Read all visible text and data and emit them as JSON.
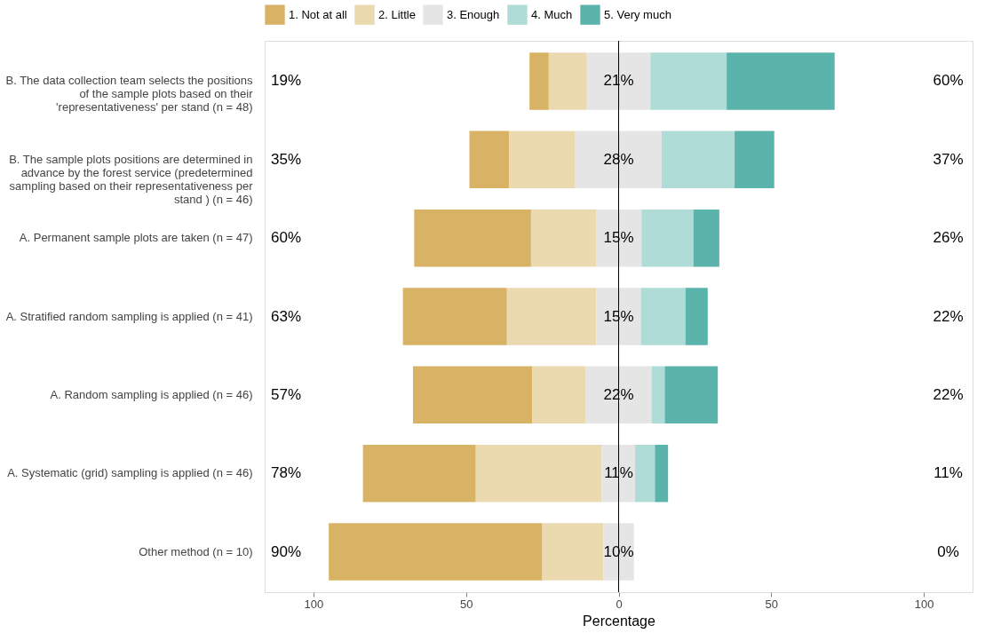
{
  "chart_data": {
    "type": "bar",
    "orientation": "horizontal",
    "xlabel": "Percentage",
    "categories": [
      "B. The data collection team selects the positions of the sample plots based on their 'representativeness' per stand (n = 48)",
      "B. The sample plots positions are determined in advance by the forest service (predetermined sampling based on their representativeness per stand ) (n = 46)",
      "A. Permanent sample plots are taken (n = 47)",
      "A. Stratified random sampling is applied (n = 41)",
      "A. Random sampling is applied (n = 46)",
      "A. Systematic (grid) sampling is applied (n = 46)",
      "Other method (n = 10)"
    ],
    "series": [
      {
        "name": "1. Not at all",
        "color": "#d8b365",
        "values": [
          6.3,
          13,
          38.3,
          34.1,
          39.1,
          37,
          70
        ],
        "base": [
          -29.2,
          -48.9,
          -67.0,
          -70.7,
          -67.4,
          -83.8,
          -95
        ]
      },
      {
        "name": "2. Little",
        "color": "#ebd9b0",
        "values": [
          12.5,
          21.7,
          21.3,
          29.3,
          17.4,
          41.3,
          20
        ],
        "base": [
          -22.9,
          -35.9,
          -28.7,
          -36.6,
          -28.3,
          -46.8,
          -25
        ]
      },
      {
        "name": "3. Enough",
        "color": "#e5e5e5",
        "values": [
          20.8,
          28.3,
          14.9,
          14.6,
          21.7,
          10.9,
          10
        ],
        "base": [
          -10.4,
          -14.2,
          -7.4,
          -7.3,
          -10.9,
          -5.5,
          -5
        ]
      },
      {
        "name": "4. Much",
        "color": "#afdcd6",
        "values": [
          25,
          23.9,
          17,
          14.6,
          4.3,
          6.5,
          null
        ],
        "base": [
          10.4,
          14.1,
          7.5,
          7.3,
          10.8,
          5.4,
          null
        ]
      },
      {
        "name": "5. Very much",
        "color": "#5ab4ac",
        "values": [
          35.4,
          13,
          8.5,
          7.3,
          17.4,
          4.3,
          null
        ],
        "base": [
          35.4,
          38.0,
          24.5,
          21.9,
          15.1,
          11.9,
          null
        ]
      }
    ],
    "xlim": [
      -116,
      116
    ],
    "xticks": [
      {
        "value": -100,
        "label": "100"
      },
      {
        "value": -50,
        "label": "50"
      },
      0,
      50,
      100
    ],
    "ref_lines": [
      {
        "axis": "x",
        "value": 0,
        "color": "#000000"
      }
    ],
    "grid": false,
    "legend": "top",
    "annotations": [
      "19%",
      "21%",
      "60%",
      "35%",
      "28%",
      "37%",
      "60%",
      "15%",
      "26%",
      "63%",
      "15%",
      "22%",
      "57%",
      "22%",
      "22%",
      "78%",
      "11%",
      "11%",
      "90%",
      "10%",
      "0%"
    ]
  }
}
